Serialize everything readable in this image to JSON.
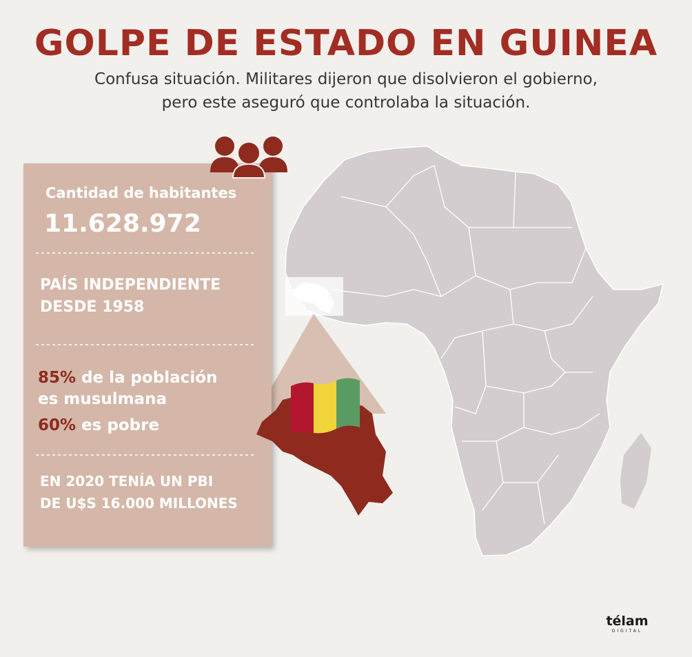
{
  "header": {
    "title": "GOLPE DE ESTADO EN GUINEA",
    "subtitle": [
      "Confusa situación. Militares dijeron que disolvieron el gobierno,",
      "pero este aseguró que controlaba la situación."
    ]
  },
  "panel": {
    "population": {
      "label": "Cantidad de habitantes",
      "value": "11.628.972"
    },
    "independence": [
      "PAÍS INDEPENDIENTE",
      "DESDE 1958"
    ],
    "religion": {
      "percent": "85%",
      "text": [
        " de la población",
        "es musulmana"
      ]
    },
    "poverty": {
      "percent": "60%",
      "text": " es pobre"
    },
    "gdp": [
      "EN 2020 TENÍA UN PBI",
      "DE U$S 16.000 MILLONES"
    ]
  },
  "logo": {
    "name": "télam",
    "tagline": "DIGITAL"
  }
}
